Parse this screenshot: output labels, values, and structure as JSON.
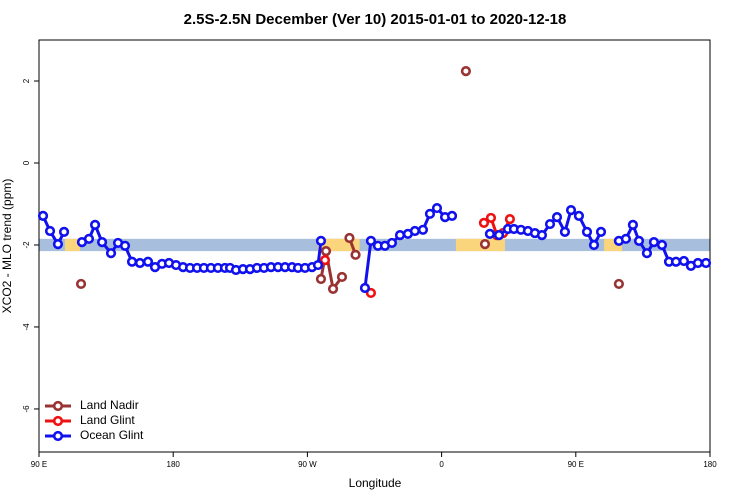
{
  "chart_data": {
    "type": "line",
    "title": "2.5S-2.5N December (Ver 10)   2015-01-01 to 2020-12-18",
    "xlabel": "Longitude",
    "ylabel": "XCO2 - MLO trend (ppm)",
    "xlim": [
      90,
      540
    ],
    "ylim": [
      -7.05,
      3.0
    ],
    "xticks": [
      {
        "value": 90,
        "label": "90 E"
      },
      180,
      {
        "value": 270,
        "label": "90 W"
      },
      {
        "value": 360,
        "label": "0"
      },
      {
        "value": 450,
        "label": "90 E"
      },
      {
        "value": 540,
        "label": "180"
      }
    ],
    "yticks": [
      -6,
      -4,
      -2,
      0,
      2
    ],
    "legend": "bottom-left",
    "band_y": [
      -1.85,
      -2.15
    ],
    "bands": [
      {
        "color": "#a8bedd",
        "xranges": [
          [
            90,
            540
          ]
        ]
      },
      {
        "color": "#fbd57c",
        "xranges": [
          [
            107.4,
            117.5
          ],
          [
            277,
            305
          ],
          [
            369.6,
            402.5
          ],
          [
            469,
            481
          ]
        ]
      }
    ],
    "series": [
      {
        "name": "Land Nadir",
        "color": "#993333",
        "x": [
          118.2,
          200,
          279.1,
          282.5,
          287.2,
          293.2,
          296,
          298.2,
          302.3,
          380,
          376.3,
          400,
          389.1,
          450,
          478.9
        ],
        "values": [
          -2.95,
          null,
          -2.83,
          -2.15,
          -3.07,
          -2.78,
          null,
          -1.83,
          -2.24,
          null,
          2.24,
          null,
          -1.98,
          null,
          -2.95
        ]
      },
      {
        "name": "Land Glint",
        "color": "#ee1111",
        "x": [
          281.8,
          296,
          312.6,
          350,
          388.4,
          393.1,
          397.1,
          401.2,
          405.8
        ],
        "values": [
          -2.37,
          null,
          -3.17,
          null,
          -1.46,
          -1.34,
          -1.76,
          -1.71,
          -1.37
        ]
      },
      {
        "name": "Ocean Glint",
        "color": "#1111ee",
        "x": [
          92.7,
          97.4,
          102.7,
          106.8,
          110,
          118.8,
          123.5,
          127.6,
          132.3,
          138.3,
          143.0,
          147.7,
          152.4,
          157.7,
          163.1,
          167.8,
          172.5,
          177.2,
          181.9,
          186.6,
          191.3,
          196.0,
          200.6,
          205.3,
          210.0,
          214.7,
          218.1,
          222.1,
          226.8,
          231.5,
          236.2,
          240.9,
          245.6,
          250.3,
          255.0,
          259.7,
          263.7,
          268.4,
          273.1,
          277.1,
          279.1,
          300,
          308.6,
          312.6,
          317.3,
          322.0,
          326.7,
          332.1,
          337.4,
          342.1,
          347.5,
          352.2,
          356.9,
          362.3,
          367.0,
          380,
          392.4,
          398.5,
          404.5,
          408.5,
          413.2,
          417.9,
          422.6,
          427.3,
          432.7,
          437.4,
          442.7,
          446.8,
          452.1,
          457.5,
          462.2,
          466.9,
          472,
          478.9,
          483.6,
          488.3,
          492.4,
          497.7,
          502.4,
          507.8,
          512.5,
          517.2,
          522.5,
          527.2,
          531.9,
          537.3
        ],
        "values": [
          -1.29,
          -1.66,
          -1.98,
          -1.68,
          null,
          -1.93,
          -1.85,
          -1.51,
          -1.93,
          -2.2,
          -1.95,
          -2.02,
          -2.41,
          -2.44,
          -2.41,
          -2.54,
          -2.46,
          -2.44,
          -2.49,
          -2.54,
          -2.56,
          -2.56,
          -2.56,
          -2.56,
          -2.56,
          -2.56,
          -2.56,
          -2.61,
          -2.59,
          -2.59,
          -2.56,
          -2.56,
          -2.54,
          -2.54,
          -2.54,
          -2.54,
          -2.56,
          -2.56,
          -2.54,
          -2.49,
          -1.9,
          null,
          -3.05,
          -1.9,
          -2.02,
          -2.02,
          -1.95,
          -1.76,
          -1.73,
          -1.66,
          -1.63,
          -1.24,
          -1.1,
          -1.32,
          -1.29,
          null,
          -1.73,
          -1.76,
          -1.61,
          -1.61,
          -1.63,
          -1.66,
          -1.71,
          -1.76,
          -1.49,
          -1.32,
          -1.68,
          -1.15,
          -1.29,
          -1.68,
          -2.0,
          -1.68,
          null,
          -1.9,
          -1.85,
          -1.51,
          -1.9,
          -2.2,
          -1.93,
          -2.0,
          -2.41,
          -2.41,
          -2.39,
          -2.51,
          -2.44,
          -2.44
        ]
      }
    ]
  }
}
